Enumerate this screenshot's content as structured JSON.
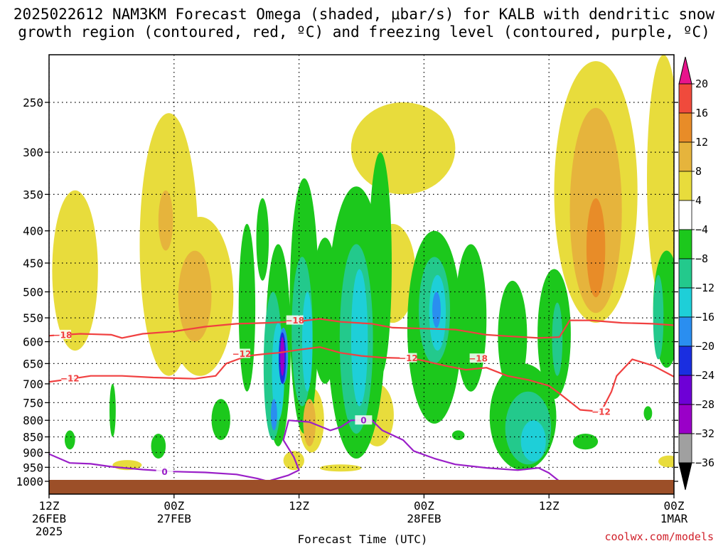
{
  "title": {
    "line1": "2025022612 NAM3KM Forecast Omega (shaded, μbar/s) for KALB with dendritic snow",
    "line2": "growth region (contoured, red, ºC) and freezing level (contoured, purple, ºC)"
  },
  "credit": "coolwx.com/models",
  "colors": {
    "ground": "#9c4f28",
    "dendritic_contour": "#f04040",
    "freezing_contour": "#9a1fc8"
  },
  "chart_data": {
    "type": "heatmap",
    "xlabel": "Forecast Time (UTC)",
    "ylabel": "",
    "x_unit": "hours since 2025-02-26 12Z",
    "xlim": [
      0,
      60
    ],
    "ylim_pressure_mb": [
      1000,
      200
    ],
    "y_scale": "log-pressure",
    "grid": true,
    "x_ticks": [
      {
        "x": 0,
        "line1": "12Z",
        "line2": "26FEB",
        "line3": "2025"
      },
      {
        "x": 12,
        "line1": "00Z",
        "line2": "27FEB",
        "line3": ""
      },
      {
        "x": 24,
        "line1": "12Z",
        "line2": "",
        "line3": ""
      },
      {
        "x": 36,
        "line1": "00Z",
        "line2": "28FEB",
        "line3": ""
      },
      {
        "x": 48,
        "line1": "12Z",
        "line2": "",
        "line3": ""
      },
      {
        "x": 60,
        "line1": "00Z",
        "line2": "1MAR",
        "line3": ""
      }
    ],
    "y_ticks": [
      250,
      300,
      350,
      400,
      450,
      500,
      550,
      600,
      650,
      700,
      750,
      800,
      850,
      900,
      950,
      1000
    ],
    "colorbar": {
      "levels": [
        -36,
        -32,
        -28,
        -24,
        -20,
        -16,
        -12,
        -8,
        -4,
        4,
        8,
        12,
        16,
        20
      ],
      "labels": [
        "20",
        "16",
        "12",
        "8",
        "4",
        "−4",
        "−8",
        "−12",
        "−16",
        "−20",
        "−24",
        "−28",
        "−32",
        "−36"
      ],
      "colors_low_to_high": [
        "#000000",
        "#a0a0a0",
        "#9a00c8",
        "#6e00d6",
        "#1a2ee0",
        "#2a8ef0",
        "#1ecfd8",
        "#23c98c",
        "#1cc81c",
        "#ffffff",
        "#e8dc3c",
        "#e6b43c",
        "#e88c28",
        "#f04a3c",
        "#e8148c"
      ]
    },
    "series": [
      {
        "name": "-18",
        "kind": "dendritic",
        "points": [
          [
            0,
            587
          ],
          [
            3,
            583
          ],
          [
            6,
            585
          ],
          [
            7,
            592
          ],
          [
            9,
            583
          ],
          [
            12,
            578
          ],
          [
            15,
            568
          ],
          [
            18,
            562
          ],
          [
            21,
            560
          ],
          [
            24,
            557
          ],
          [
            26,
            552
          ],
          [
            28,
            558
          ],
          [
            31,
            562
          ],
          [
            33,
            570
          ],
          [
            36,
            572
          ],
          [
            39,
            574
          ],
          [
            42,
            585
          ],
          [
            44,
            588
          ],
          [
            47,
            592
          ],
          [
            49,
            590
          ],
          [
            50,
            555
          ],
          [
            52,
            555
          ],
          [
            55,
            560
          ],
          [
            58,
            562
          ],
          [
            60,
            565
          ]
        ]
      },
      {
        "name": "-12",
        "kind": "dendritic",
        "points": [
          [
            0,
            695
          ],
          [
            2,
            688
          ],
          [
            4,
            680
          ],
          [
            7,
            680
          ],
          [
            10,
            684
          ],
          [
            14,
            687
          ],
          [
            16,
            680
          ],
          [
            17,
            650
          ],
          [
            19,
            632
          ],
          [
            21,
            627
          ],
          [
            22,
            625
          ],
          [
            24,
            618
          ],
          [
            26,
            612
          ],
          [
            28,
            625
          ],
          [
            30,
            632
          ],
          [
            32,
            636
          ],
          [
            35,
            638
          ],
          [
            38,
            655
          ],
          [
            40,
            665
          ],
          [
            42,
            660
          ],
          [
            44,
            680
          ],
          [
            46,
            690
          ],
          [
            48,
            705
          ],
          [
            49,
            725
          ],
          [
            51,
            770
          ],
          [
            53,
            775
          ],
          [
            54,
            720
          ],
          [
            54.5,
            680
          ],
          [
            56,
            640
          ],
          [
            58,
            655
          ],
          [
            60,
            682
          ]
        ]
      },
      {
        "name": "0",
        "kind": "freezing",
        "points": [
          [
            0,
            905
          ],
          [
            2,
            935
          ],
          [
            4,
            938
          ],
          [
            6,
            948
          ],
          [
            9,
            958
          ],
          [
            12,
            965
          ],
          [
            15,
            968
          ],
          [
            18,
            975
          ],
          [
            20,
            990
          ],
          [
            21,
            1000
          ],
          [
            23,
            978
          ],
          [
            24,
            960
          ],
          [
            23.5,
            915
          ],
          [
            22.5,
            860
          ],
          [
            23,
            800
          ],
          [
            25,
            805
          ],
          [
            27,
            830
          ],
          [
            28,
            820
          ],
          [
            29,
            800
          ],
          [
            31,
            800
          ],
          [
            32,
            830
          ],
          [
            34,
            860
          ],
          [
            35,
            895
          ],
          [
            37,
            920
          ],
          [
            39,
            940
          ],
          [
            42,
            952
          ],
          [
            45,
            960
          ],
          [
            47,
            952
          ],
          [
            48,
            970
          ],
          [
            49,
            1000
          ]
        ]
      }
    ],
    "contour_labels": [
      {
        "text": "−18",
        "x": 1.3,
        "p": 585,
        "kind": "dendritic"
      },
      {
        "text": "−18",
        "x": 23.6,
        "p": 555,
        "kind": "dendritic"
      },
      {
        "text": "−18",
        "x": 41.2,
        "p": 638,
        "kind": "dendritic"
      },
      {
        "text": "−12",
        "x": 2.0,
        "p": 686,
        "kind": "dendritic"
      },
      {
        "text": "−12",
        "x": 18.5,
        "p": 627,
        "kind": "dendritic"
      },
      {
        "text": "−12",
        "x": 34.5,
        "p": 637,
        "kind": "dendritic"
      },
      {
        "text": "−12",
        "x": 53.0,
        "p": 775,
        "kind": "dendritic"
      },
      {
        "text": "0",
        "x": 11.1,
        "p": 965,
        "kind": "freezing"
      },
      {
        "text": "0",
        "x": 30.2,
        "p": 800,
        "kind": "freezing"
      }
    ],
    "omega_regions": [
      {
        "value": 6,
        "cx": 2.5,
        "p": 455,
        "rx": 2.2,
        "pt": 345,
        "pb": 620
      },
      {
        "value": 6,
        "cx": 11.5,
        "p": 470,
        "rx": 2.8,
        "pt": 260,
        "pb": 680
      },
      {
        "value": 10,
        "cx": 11.2,
        "p": 380,
        "rx": 0.7,
        "pt": 345,
        "pb": 430
      },
      {
        "value": 10,
        "cx": 14.0,
        "p": 520,
        "rx": 1.6,
        "pt": 430,
        "pb": 600
      },
      {
        "value": 6,
        "cx": 14.5,
        "p": 500,
        "rx": 3.2,
        "pt": 380,
        "pb": 680
      },
      {
        "value": 6,
        "cx": 34.0,
        "p": 290,
        "rx": 5.0,
        "pt": 250,
        "pb": 350
      },
      {
        "value": 6,
        "cx": 52.5,
        "p": 360,
        "rx": 4.0,
        "pt": 215,
        "pb": 560
      },
      {
        "value": 10,
        "cx": 52.5,
        "p": 330,
        "rx": 2.5,
        "pt": 255,
        "pb": 540
      },
      {
        "value": 14,
        "cx": 52.5,
        "p": 420,
        "rx": 0.9,
        "pt": 355,
        "pb": 510
      },
      {
        "value": 6,
        "cx": 59.0,
        "p": 380,
        "rx": 1.6,
        "pt": 210,
        "pb": 520
      },
      {
        "value": 6,
        "cx": 33.0,
        "p": 440,
        "rx": 2.2,
        "pt": 390,
        "pb": 560
      },
      {
        "value": 6,
        "cx": 7.5,
        "p": 940,
        "rx": 1.4,
        "pt": 925,
        "pb": 960
      },
      {
        "value": 6,
        "cx": 59.5,
        "p": 930,
        "rx": 1.0,
        "pt": 910,
        "pb": 950
      },
      {
        "value": 10,
        "cx": 25.0,
        "p": 800,
        "rx": 0.6,
        "pt": 740,
        "pb": 880
      },
      {
        "value": 6,
        "cx": 25.2,
        "p": 800,
        "rx": 1.2,
        "pt": 710,
        "pb": 900
      },
      {
        "value": 6,
        "cx": 31.5,
        "p": 790,
        "rx": 1.6,
        "pt": 700,
        "pb": 880
      },
      {
        "value": 6,
        "cx": 23.5,
        "p": 930,
        "rx": 1.0,
        "pt": 895,
        "pb": 960
      },
      {
        "value": 6,
        "cx": 28.0,
        "p": 955,
        "rx": 2.0,
        "pt": 940,
        "pb": 965
      },
      {
        "value": -6,
        "cx": 20.5,
        "p": 420,
        "rx": 0.6,
        "pt": 355,
        "pb": 480
      },
      {
        "value": -6,
        "cx": 19.0,
        "p": 570,
        "rx": 0.8,
        "pt": 390,
        "pb": 720
      },
      {
        "value": -6,
        "cx": 22.0,
        "p": 560,
        "rx": 1.2,
        "pt": 420,
        "pb": 880
      },
      {
        "value": -6,
        "cx": 24.5,
        "p": 600,
        "rx": 1.4,
        "pt": 330,
        "pb": 840
      },
      {
        "value": -6,
        "cx": 26.5,
        "p": 580,
        "rx": 1.3,
        "pt": 410,
        "pb": 700
      },
      {
        "value": -6,
        "cx": 29.5,
        "p": 600,
        "rx": 2.8,
        "pt": 340,
        "pb": 920
      },
      {
        "value": -6,
        "cx": 31.8,
        "p": 440,
        "rx": 1.1,
        "pt": 300,
        "pb": 680
      },
      {
        "value": -6,
        "cx": 37.0,
        "p": 560,
        "rx": 2.6,
        "pt": 400,
        "pb": 810
      },
      {
        "value": -6,
        "cx": 40.5,
        "p": 540,
        "rx": 1.5,
        "pt": 420,
        "pb": 720
      },
      {
        "value": -6,
        "cx": 44.5,
        "p": 600,
        "rx": 1.4,
        "pt": 480,
        "pb": 720
      },
      {
        "value": -6,
        "cx": 45.5,
        "p": 800,
        "rx": 3.2,
        "pt": 650,
        "pb": 960
      },
      {
        "value": -6,
        "cx": 48.5,
        "p": 570,
        "rx": 1.6,
        "pt": 460,
        "pb": 740
      },
      {
        "value": -6,
        "cx": 51.5,
        "p": 860,
        "rx": 1.2,
        "pt": 840,
        "pb": 890
      },
      {
        "value": -6,
        "cx": 59.3,
        "p": 500,
        "rx": 1.3,
        "pt": 430,
        "pb": 660
      },
      {
        "value": -6,
        "cx": 10.5,
        "p": 890,
        "rx": 0.7,
        "pt": 840,
        "pb": 920
      },
      {
        "value": -6,
        "cx": 16.5,
        "p": 790,
        "rx": 0.9,
        "pt": 740,
        "pb": 860
      },
      {
        "value": -6,
        "cx": 6.1,
        "p": 780,
        "rx": 0.3,
        "pt": 700,
        "pb": 850
      },
      {
        "value": -6,
        "cx": 2.0,
        "p": 860,
        "rx": 0.5,
        "pt": 830,
        "pb": 890
      },
      {
        "value": -6,
        "cx": 39.3,
        "p": 840,
        "rx": 0.6,
        "pt": 830,
        "pb": 860
      },
      {
        "value": -6,
        "cx": 57.5,
        "p": 780,
        "rx": 0.4,
        "pt": 760,
        "pb": 800
      },
      {
        "value": -10,
        "cx": 21.5,
        "p": 640,
        "rx": 0.9,
        "pt": 500,
        "pb": 860
      },
      {
        "value": -10,
        "cx": 24.3,
        "p": 600,
        "rx": 1.0,
        "pt": 440,
        "pb": 760
      },
      {
        "value": -10,
        "cx": 29.5,
        "p": 520,
        "rx": 1.6,
        "pt": 420,
        "pb": 840
      },
      {
        "value": -10,
        "cx": 37.0,
        "p": 530,
        "rx": 1.5,
        "pt": 440,
        "pb": 650
      },
      {
        "value": -10,
        "cx": 46.0,
        "p": 850,
        "rx": 2.2,
        "pt": 720,
        "pb": 940
      },
      {
        "value": -10,
        "cx": 58.5,
        "p": 510,
        "rx": 0.5,
        "pt": 470,
        "pb": 640
      },
      {
        "value": -10,
        "cx": 48.8,
        "p": 600,
        "rx": 0.5,
        "pt": 520,
        "pb": 680
      },
      {
        "value": -14,
        "cx": 22.0,
        "p": 650,
        "rx": 0.6,
        "pt": 560,
        "pb": 800
      },
      {
        "value": -14,
        "cx": 24.8,
        "p": 620,
        "rx": 0.5,
        "pt": 500,
        "pb": 720
      },
      {
        "value": -14,
        "cx": 29.8,
        "p": 560,
        "rx": 0.8,
        "pt": 460,
        "pb": 760
      },
      {
        "value": -14,
        "cx": 37.3,
        "p": 530,
        "rx": 0.8,
        "pt": 470,
        "pb": 620
      },
      {
        "value": -14,
        "cx": 46.5,
        "p": 870,
        "rx": 1.2,
        "pt": 800,
        "pb": 930
      },
      {
        "value": -18,
        "cx": 22.5,
        "p": 600,
        "rx": 0.45,
        "pt": 570,
        "pb": 700
      },
      {
        "value": -18,
        "cx": 21.6,
        "p": 780,
        "rx": 0.3,
        "pt": 740,
        "pb": 830
      },
      {
        "value": -18,
        "cx": 37.2,
        "p": 525,
        "rx": 0.4,
        "pt": 500,
        "pb": 570
      },
      {
        "value": -22,
        "cx": 22.4,
        "p": 620,
        "rx": 0.35,
        "pt": 580,
        "pb": 700
      },
      {
        "value": -30,
        "cx": 22.4,
        "p": 630,
        "rx": 0.2,
        "pt": 590,
        "pb": 680
      }
    ]
  }
}
